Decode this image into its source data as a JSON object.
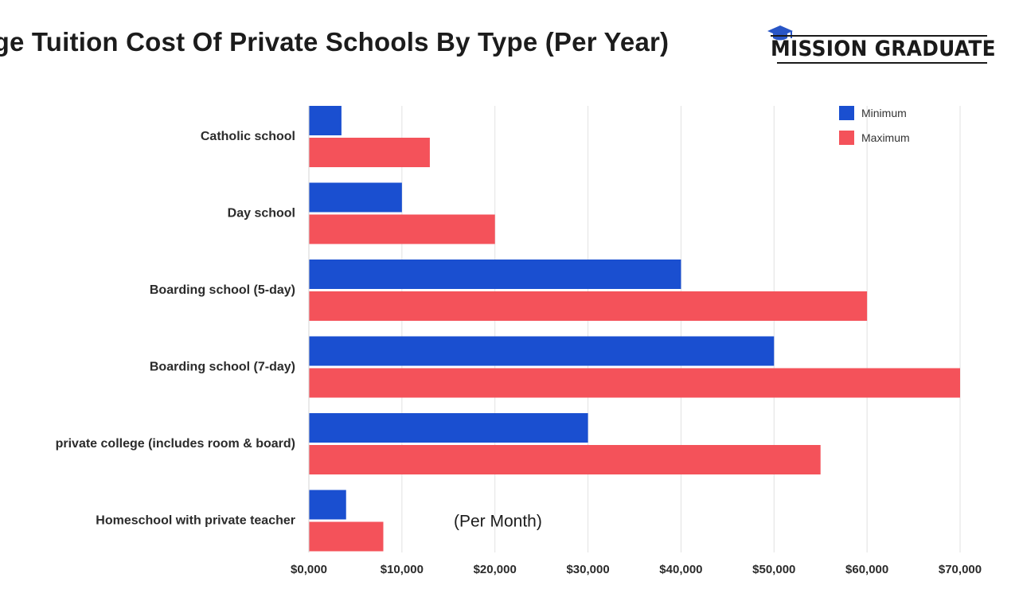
{
  "page": {
    "title": "rage Tuition Cost Of Private Schools By Type (Per Year)",
    "brand": "MISSION GRADUATE"
  },
  "colors": {
    "minimum": "#1a4fd0",
    "maximum": "#f4525a",
    "grid": "#e2e2e2",
    "brand_accent": "#2855c6"
  },
  "icons": {
    "brand_logo": "graduation-cap-icon"
  },
  "chart_data": {
    "type": "bar",
    "orientation": "horizontal",
    "title": "rage Tuition Cost Of Private Schools By Type (Per Year)",
    "categories": [
      "Catholic school",
      "Day school",
      "Boarding school (5-day)",
      "Boarding school (7-day)",
      "private college (includes room & board)",
      "Homeschool with private teacher"
    ],
    "series": [
      {
        "name": "Minimum",
        "values": [
          3500,
          10000,
          40000,
          50000,
          30000,
          4000
        ]
      },
      {
        "name": "Maximum",
        "values": [
          13000,
          20000,
          60000,
          70000,
          55000,
          8000
        ]
      }
    ],
    "xlim": [
      0,
      70000
    ],
    "xticks": [
      0,
      10000,
      20000,
      30000,
      40000,
      50000,
      60000,
      70000
    ],
    "xtick_labels": [
      "$0,000",
      "$10,000",
      "$20,000",
      "$30,000",
      "$40,000",
      "$50,000",
      "$60,000",
      "$70,000"
    ],
    "xlabel": "",
    "ylabel": "",
    "grid": true,
    "legend": "top-right",
    "annotations": [
      {
        "text": "(Per Month)",
        "category": "Homeschool with private teacher",
        "x": 16000
      }
    ]
  }
}
